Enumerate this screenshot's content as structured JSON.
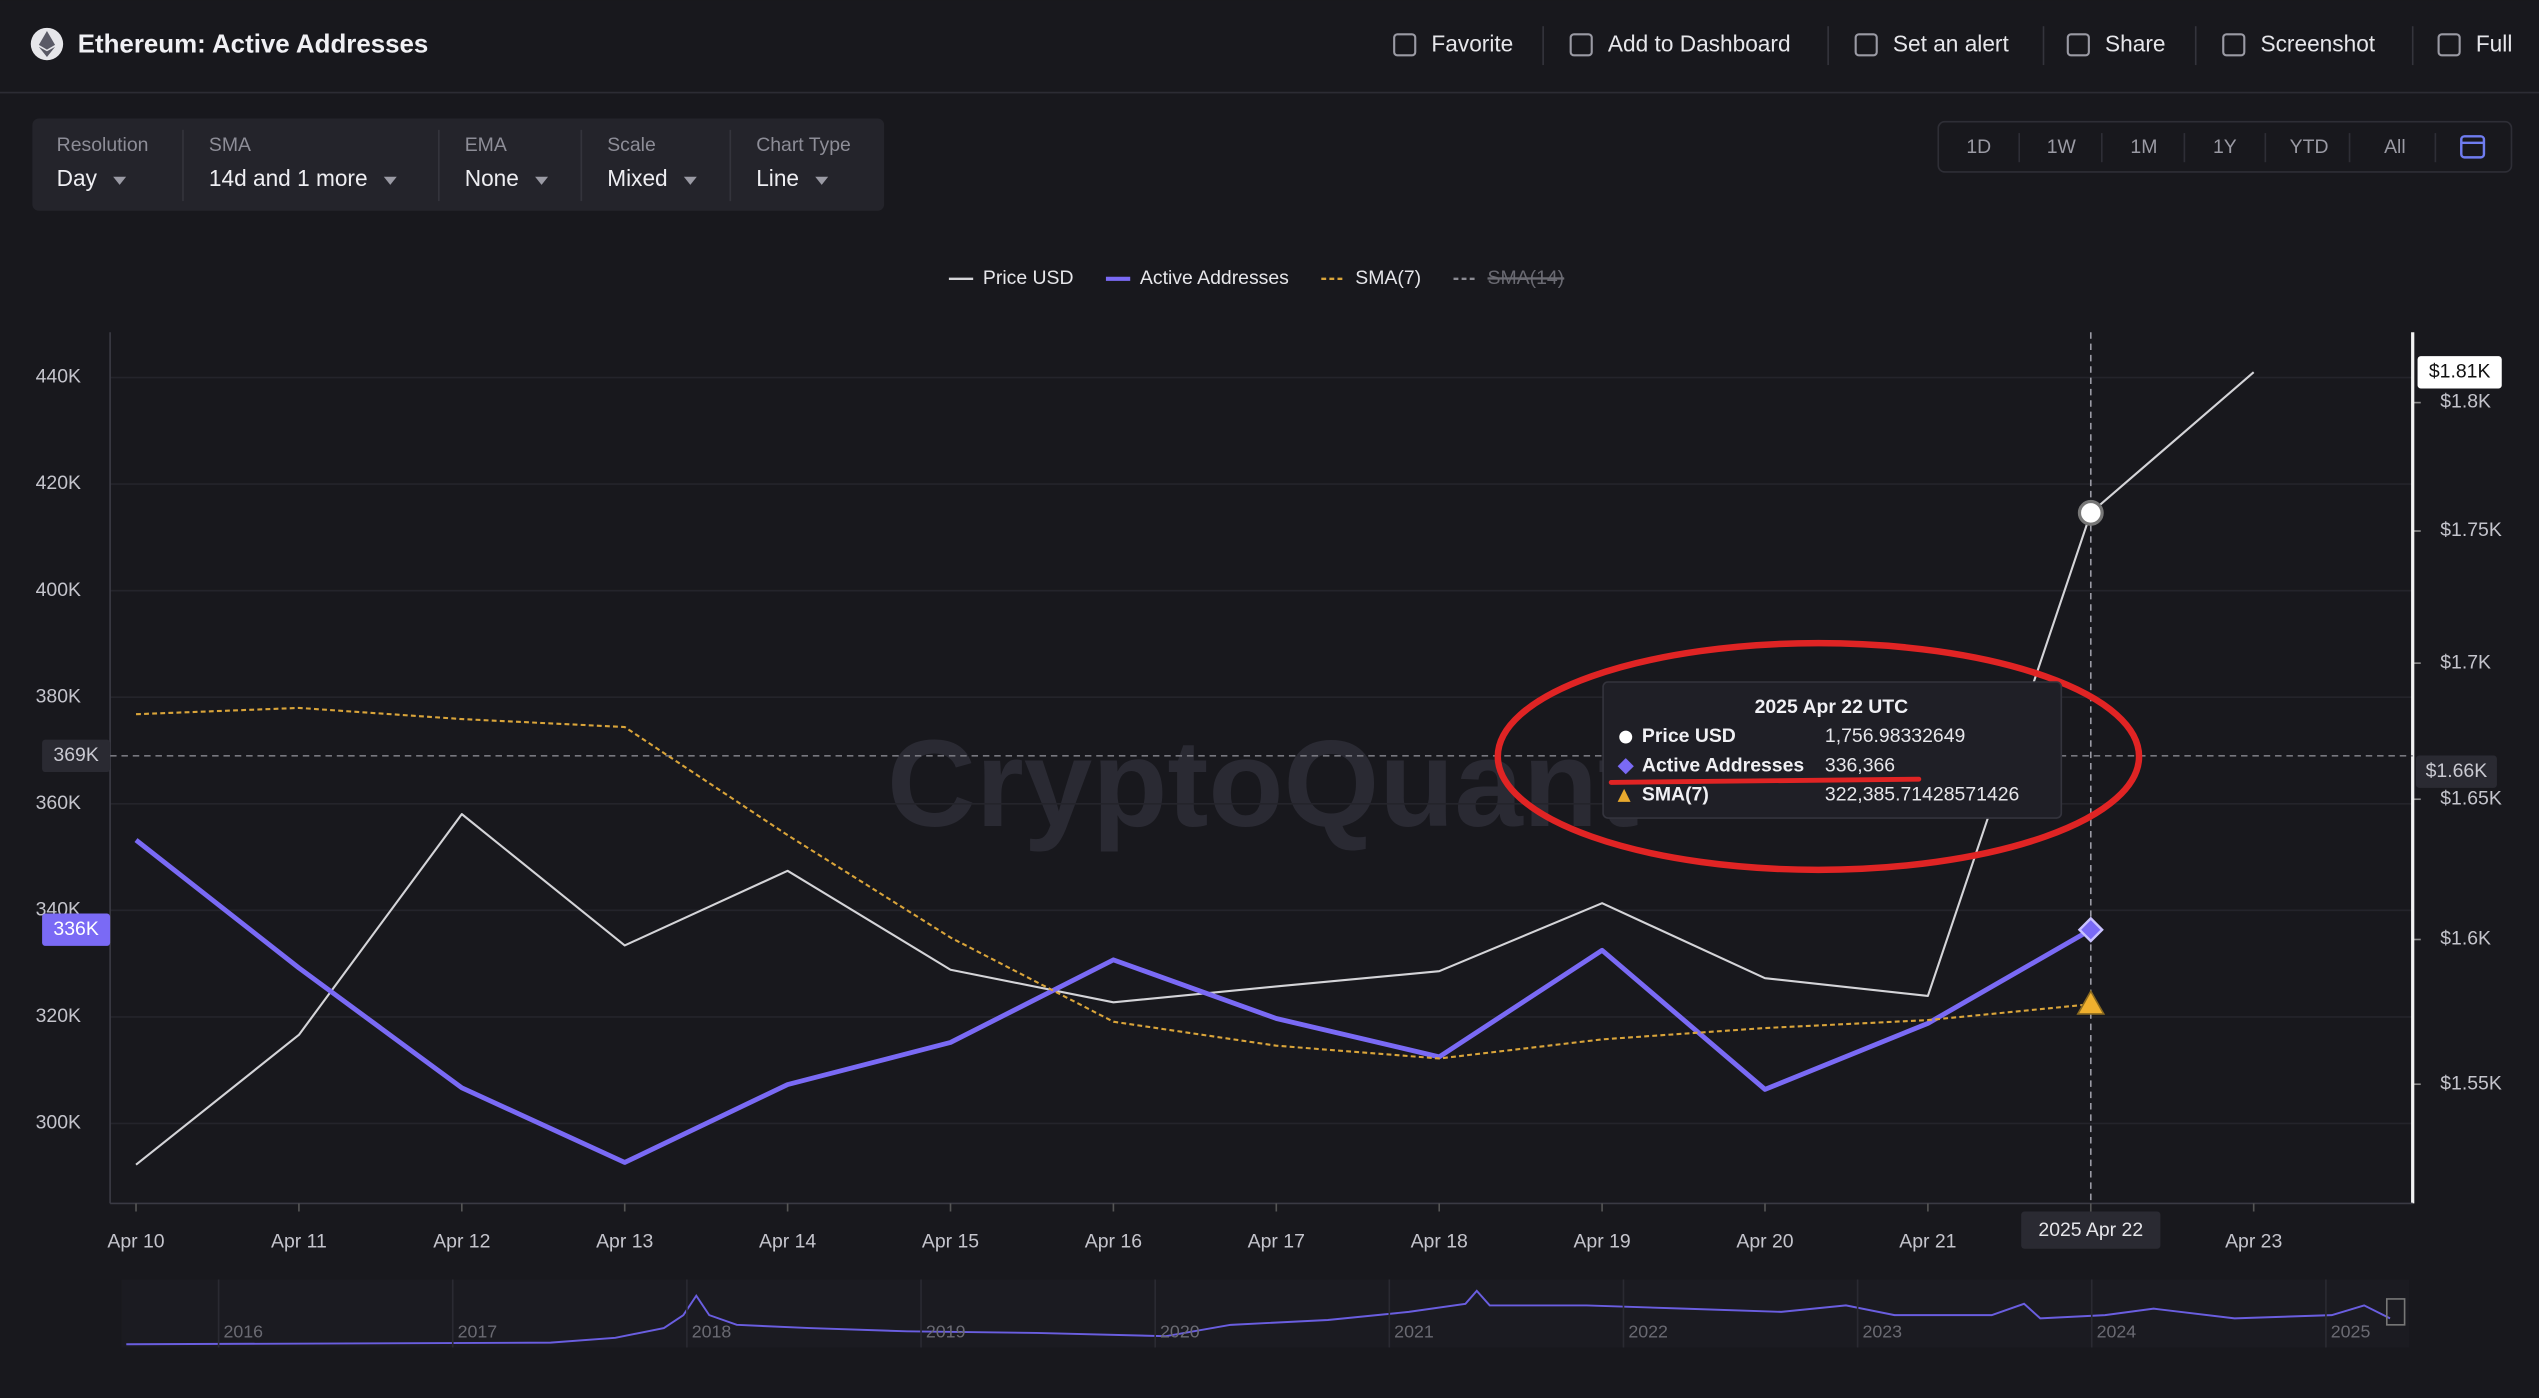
{
  "header": {
    "title": "Ethereum: Active Addresses",
    "actions": [
      "Favorite",
      "Add to Dashboard",
      "Set an alert",
      "Share",
      "Screenshot",
      "Full"
    ]
  },
  "controls": [
    {
      "label": "Resolution",
      "value": "Day"
    },
    {
      "label": "SMA",
      "value": "14d and 1 more"
    },
    {
      "label": "EMA",
      "value": "None"
    },
    {
      "label": "Scale",
      "value": "Mixed"
    },
    {
      "label": "Chart Type",
      "value": "Line"
    }
  ],
  "ranges": [
    "1D",
    "1W",
    "1M",
    "1Y",
    "YTD",
    "All"
  ],
  "watermark": "CryptoQuant",
  "chart_data": {
    "type": "line",
    "categories": [
      "Apr 10",
      "Apr 11",
      "Apr 12",
      "Apr 13",
      "Apr 14",
      "Apr 15",
      "Apr 16",
      "Apr 17",
      "Apr 18",
      "Apr 19",
      "Apr 20",
      "Apr 21",
      null,
      "Apr 23"
    ],
    "series": [
      {
        "name": "Price USD",
        "color": "#d4d4d8",
        "axis": "y2",
        "values": [
          1522.9,
          1566.9,
          1644.6,
          1597.9,
          1624.3,
          1589.4,
          1578.1,
          1583.6,
          1588.9,
          1612.8,
          1586.5,
          1580.3,
          1756.98332649,
          1812
        ]
      },
      {
        "name": "Active Addresses",
        "color": "#7a6af5",
        "values": [
          353200,
          329200,
          306700,
          292700,
          307300,
          315200,
          330700,
          319700,
          312500,
          332500,
          306400,
          318800,
          336366,
          null
        ]
      },
      {
        "name": "SMA(7)",
        "color": "#d9a43a",
        "dash": true,
        "values": [
          376800,
          378000,
          375900,
          374400,
          354100,
          334900,
          319100,
          314600,
          312200,
          315800,
          317900,
          319400,
          322385.71428571426,
          null
        ]
      },
      {
        "name": "SMA(14)",
        "color": "#8a8a92",
        "dash": true,
        "hidden": true,
        "values": [
          null,
          null,
          null,
          null,
          null,
          null,
          null,
          null,
          null,
          null,
          null,
          null,
          null,
          null
        ]
      }
    ],
    "ylim": [
      285000,
      448500
    ],
    "yticks": [
      {
        "value": 300000,
        "label": "300K"
      },
      {
        "value": 320000,
        "label": "320K"
      },
      {
        "value": 340000,
        "label": "340K"
      },
      {
        "value": 360000,
        "label": "360K"
      },
      {
        "value": 380000,
        "label": "380K"
      },
      {
        "value": 400000,
        "label": "400K"
      },
      {
        "value": 420000,
        "label": "420K"
      },
      {
        "value": 440000,
        "label": "440K"
      }
    ],
    "y2scale": "log",
    "y2lim": [
      1510,
      1828
    ],
    "y2ticks": [
      {
        "value": 1550,
        "label": "$1.55K"
      },
      {
        "value": 1600,
        "label": "$1.6K"
      },
      {
        "value": 1650,
        "label": "$1.65K"
      },
      {
        "value": 1700,
        "label": "$1.7K"
      },
      {
        "value": 1750,
        "label": "$1.75K"
      },
      {
        "value": 1800,
        "label": "$1.8K"
      }
    ],
    "grid": true,
    "crosshair": {
      "x_label": "2025 Apr 22",
      "y_label": {
        "value": 369000,
        "label": "369K"
      },
      "y2_label": {
        "value": 1660,
        "label": "$1.66K"
      }
    },
    "y_badge": {
      "value": 336366,
      "label": "336K"
    },
    "y2_badge": {
      "value": 1812,
      "label": "$1.81K"
    }
  },
  "tooltip": {
    "title": "2025 Apr 22 UTC",
    "rows": [
      {
        "name": "Price USD",
        "value": "1,756.98332649"
      },
      {
        "name": "Active Addresses",
        "value": "336,366"
      },
      {
        "name": "SMA(7)",
        "value": "322,385.71428571426"
      }
    ]
  },
  "navigator": {
    "years": [
      "2016",
      "2017",
      "2018",
      "2019",
      "2020",
      "2021",
      "2022",
      "2023",
      "2024",
      "2025"
    ]
  }
}
